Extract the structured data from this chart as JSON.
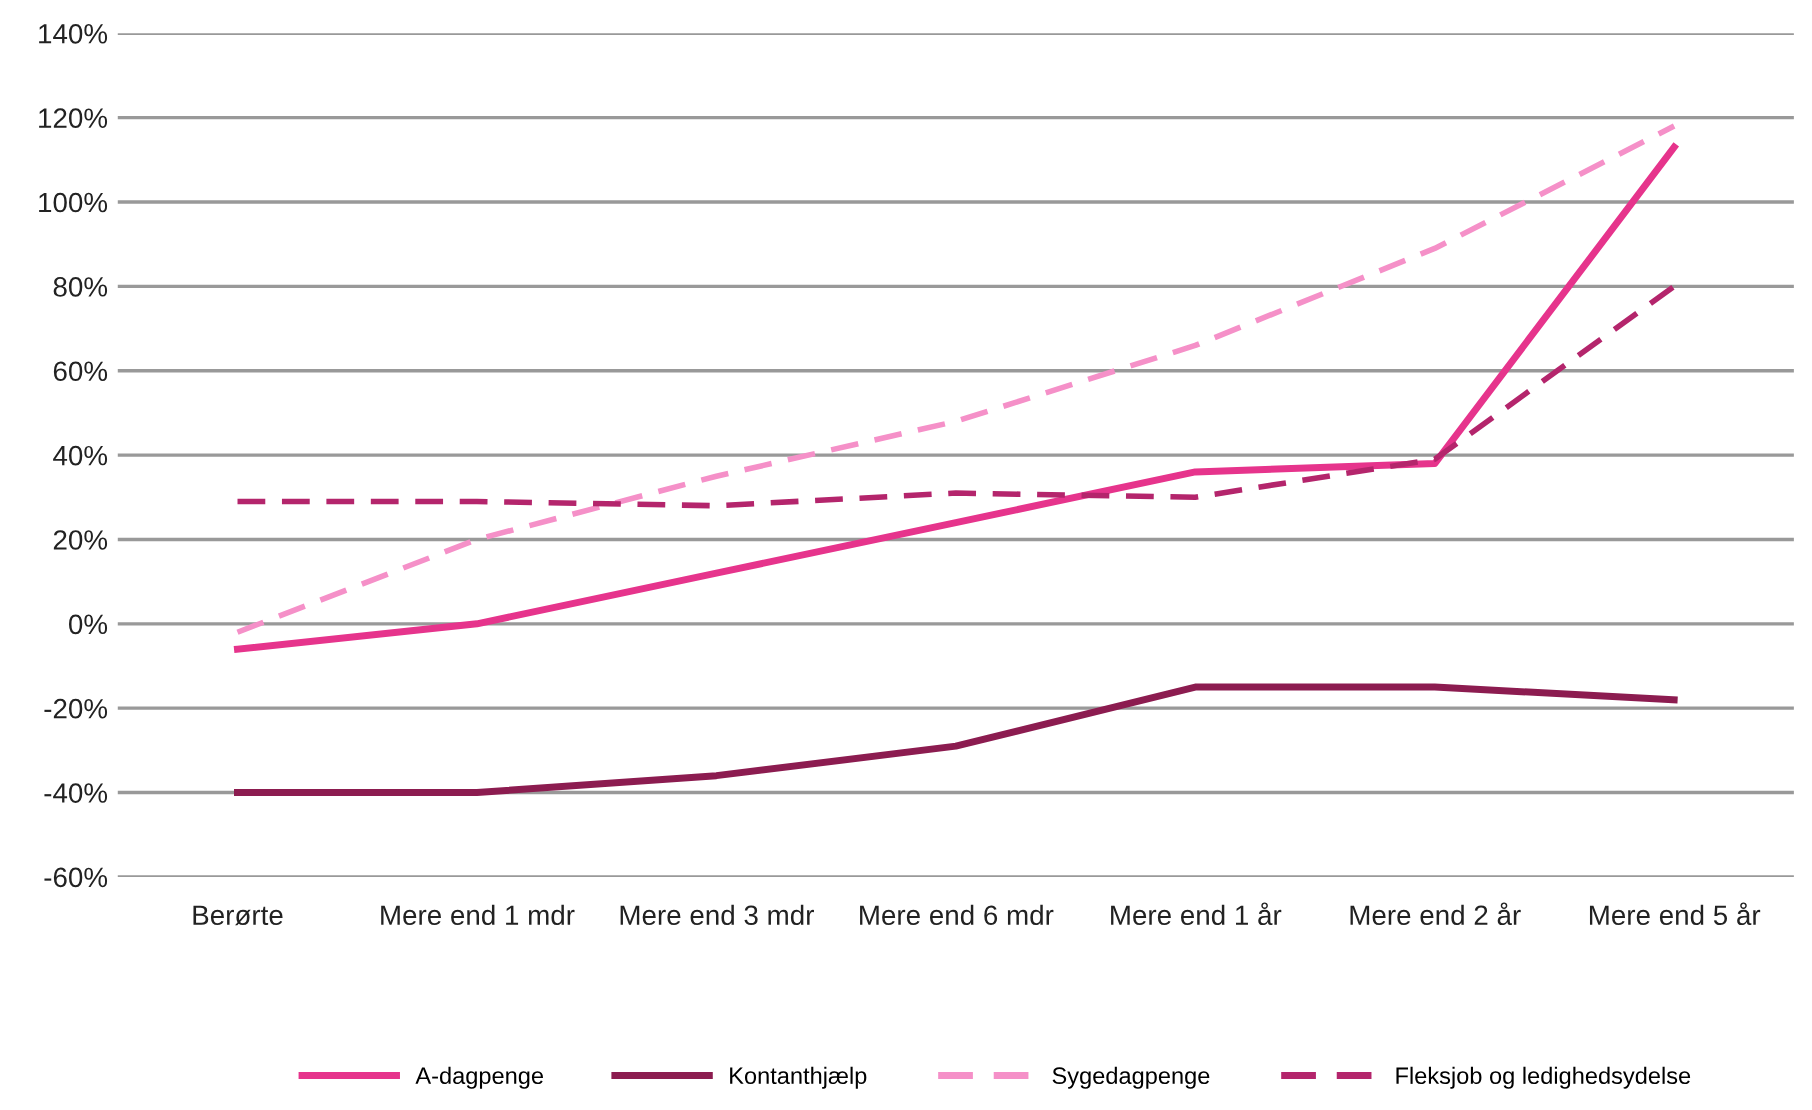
{
  "chart_data": {
    "type": "line",
    "categories": [
      "Berørte",
      "Mere end 1 mdr",
      "Mere end 3 mdr",
      "Mere end 6 mdr",
      "Mere end 1 år",
      "Mere end 2 år",
      "Mere end 5 år"
    ],
    "series": [
      {
        "name": "A-dagpenge",
        "color": "#e6348c",
        "line_style": "solid",
        "values": [
          -6,
          0,
          12,
          24,
          36,
          38,
          113
        ]
      },
      {
        "name": "Kontanthjælp",
        "color": "#8c1c50",
        "line_style": "solid",
        "values": [
          -40,
          -40,
          -36,
          -29,
          -15,
          -15,
          -18
        ]
      },
      {
        "name": "Sygedagpenge",
        "color": "#f590c8",
        "line_style": "dashed",
        "values": [
          -2,
          20,
          35,
          48,
          66,
          89,
          118
        ]
      },
      {
        "name": "Fleksjob og ledighedsydelse",
        "color": "#b4256c",
        "line_style": "dashed",
        "values": [
          29,
          29,
          28,
          31,
          30,
          39,
          80
        ]
      }
    ],
    "ylim": [
      -60,
      140
    ],
    "yticks": [
      {
        "value": -60,
        "label": "-60%"
      },
      {
        "value": -40,
        "label": "-40%"
      },
      {
        "value": -20,
        "label": "-20%"
      },
      {
        "value": 0,
        "label": "0%"
      },
      {
        "value": 20,
        "label": "20%"
      },
      {
        "value": 40,
        "label": "40%"
      },
      {
        "value": 60,
        "label": "60%"
      },
      {
        "value": 80,
        "label": "80%"
      },
      {
        "value": 100,
        "label": "100%"
      },
      {
        "value": 120,
        "label": "120%"
      },
      {
        "value": 140,
        "label": "140%"
      }
    ],
    "grid": "y",
    "legend": "bottom",
    "marker": "none"
  }
}
